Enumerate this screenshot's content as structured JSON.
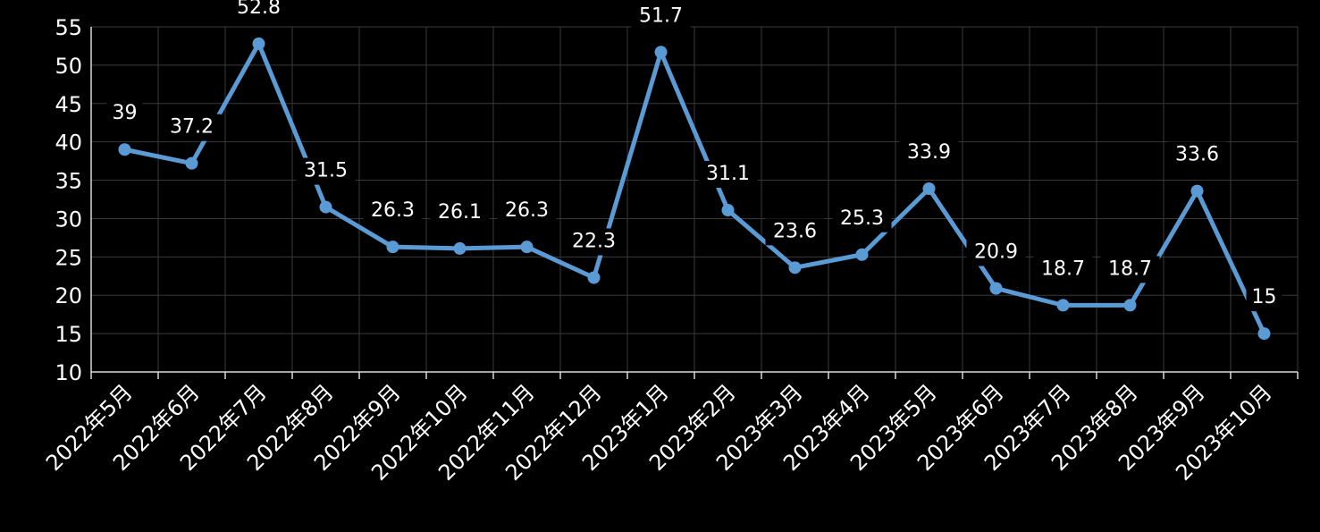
{
  "chart_data": {
    "type": "line",
    "title": "",
    "xlabel": "",
    "ylabel": "",
    "categories": [
      "2022年5月",
      "2022年6月",
      "2022年7月",
      "2022年8月",
      "2022年9月",
      "2022年10月",
      "2022年11月",
      "2022年12月",
      "2023年1月",
      "2023年2月",
      "2023年3月",
      "2023年4月",
      "2023年5月",
      "2023年6月",
      "2023年7月",
      "2023年8月",
      "2023年9月",
      "2023年10月"
    ],
    "series": [
      {
        "values": [
          39,
          37.2,
          52.8,
          31.5,
          26.3,
          26.1,
          26.3,
          22.3,
          51.7,
          31.1,
          23.6,
          25.3,
          33.9,
          20.9,
          18.7,
          18.7,
          33.6,
          15
        ],
        "labels": [
          "39",
          "37.2",
          "52.8",
          "31.5",
          "26.3",
          "26.1",
          "26.3",
          "22.3",
          "51.7",
          "31.1",
          "23.6",
          "25.3",
          "33.9",
          "20.9",
          "18.7",
          "18.7",
          "33.6",
          "15"
        ],
        "color": "#5B9BD5"
      }
    ],
    "ylim": [
      10,
      55
    ],
    "yticks": [
      "10",
      "15",
      "20",
      "25",
      "30",
      "35",
      "40",
      "45",
      "50",
      "55"
    ],
    "grid": true,
    "legend": "none",
    "colors": {
      "background": "#000000",
      "text": "#FFFFFF",
      "grid": "#3A3A3A",
      "axis": "#D9D9D9"
    }
  }
}
